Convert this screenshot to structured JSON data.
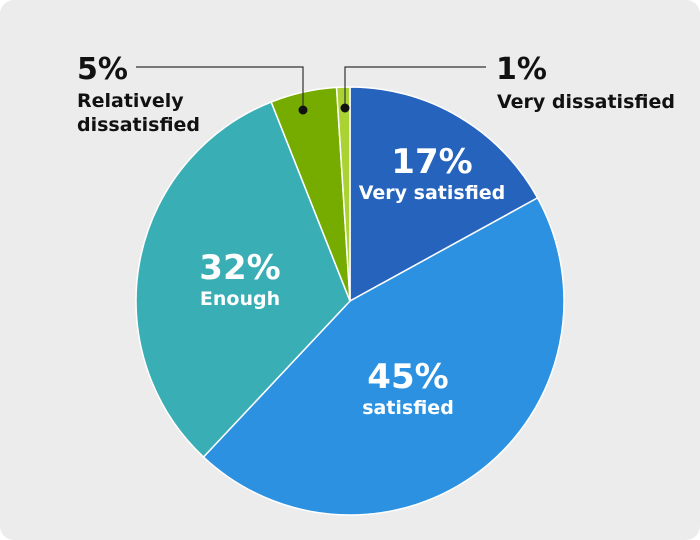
{
  "chart_data": {
    "type": "pie",
    "title": "",
    "slices": [
      {
        "label": "Very satisfied",
        "value": 17,
        "display": "17%",
        "color": "#2563bd"
      },
      {
        "label": "satisfied",
        "value": 45,
        "display": "45%",
        "color": "#2b91e0"
      },
      {
        "label": "Enough",
        "value": 32,
        "display": "32%",
        "color": "#3aaeb5"
      },
      {
        "label_lines": [
          "Relatively",
          "dissatisfied"
        ],
        "value": 5,
        "display": "5%",
        "color": "#76ac00"
      },
      {
        "label": "Very dissatisfied",
        "value": 1,
        "display": "1%",
        "color": "#a9d232"
      }
    ]
  }
}
